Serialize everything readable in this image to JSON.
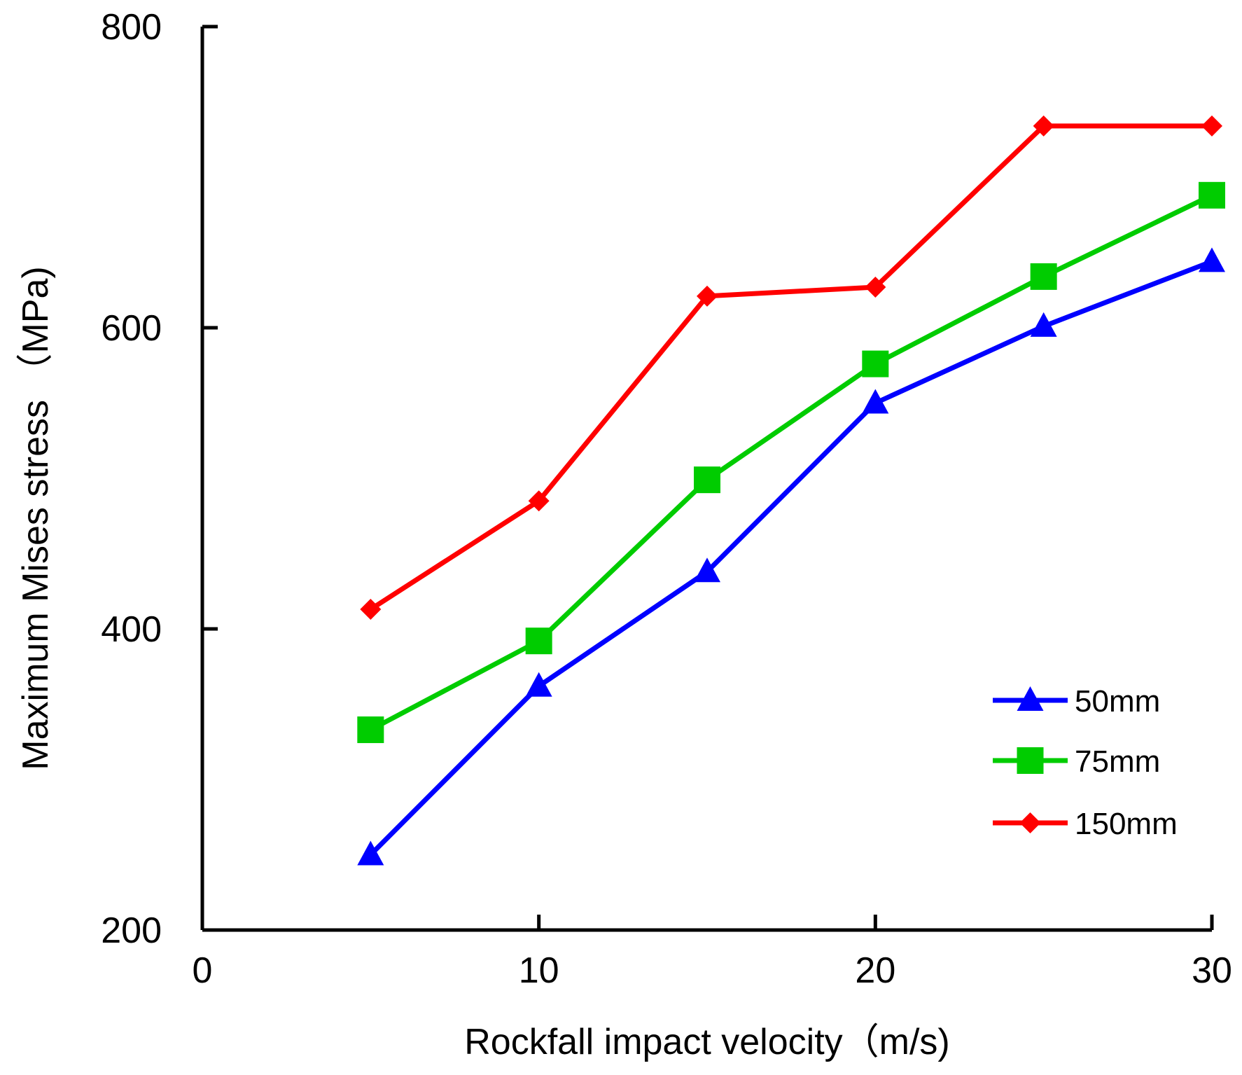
{
  "chart_data": {
    "type": "line",
    "title": "",
    "xlabel": "Rockfall impact velocity（m/s)",
    "ylabel": "Maximum Mises stress （MPa)",
    "xlim": [
      0,
      30
    ],
    "ylim": [
      200,
      800
    ],
    "xticks": [
      0,
      10,
      20,
      30
    ],
    "yticks": [
      200,
      400,
      600,
      800
    ],
    "grid": false,
    "legend_position": "bottom-right",
    "series": [
      {
        "name": "50mm",
        "color": "#0000ff",
        "marker": "triangle",
        "x": [
          5,
          10,
          15,
          20,
          25,
          30
        ],
        "y": [
          250,
          362,
          438,
          550,
          601,
          644
        ]
      },
      {
        "name": "75mm",
        "color": "#00cc00",
        "marker": "square",
        "x": [
          5,
          10,
          15,
          20,
          25,
          30
        ],
        "y": [
          333,
          392,
          499,
          576,
          634,
          688
        ]
      },
      {
        "name": "150mm",
        "color": "#ff0000",
        "marker": "diamond",
        "x": [
          5,
          10,
          15,
          20,
          25,
          30
        ],
        "y": [
          413,
          485,
          621,
          627,
          734,
          734
        ]
      }
    ]
  }
}
